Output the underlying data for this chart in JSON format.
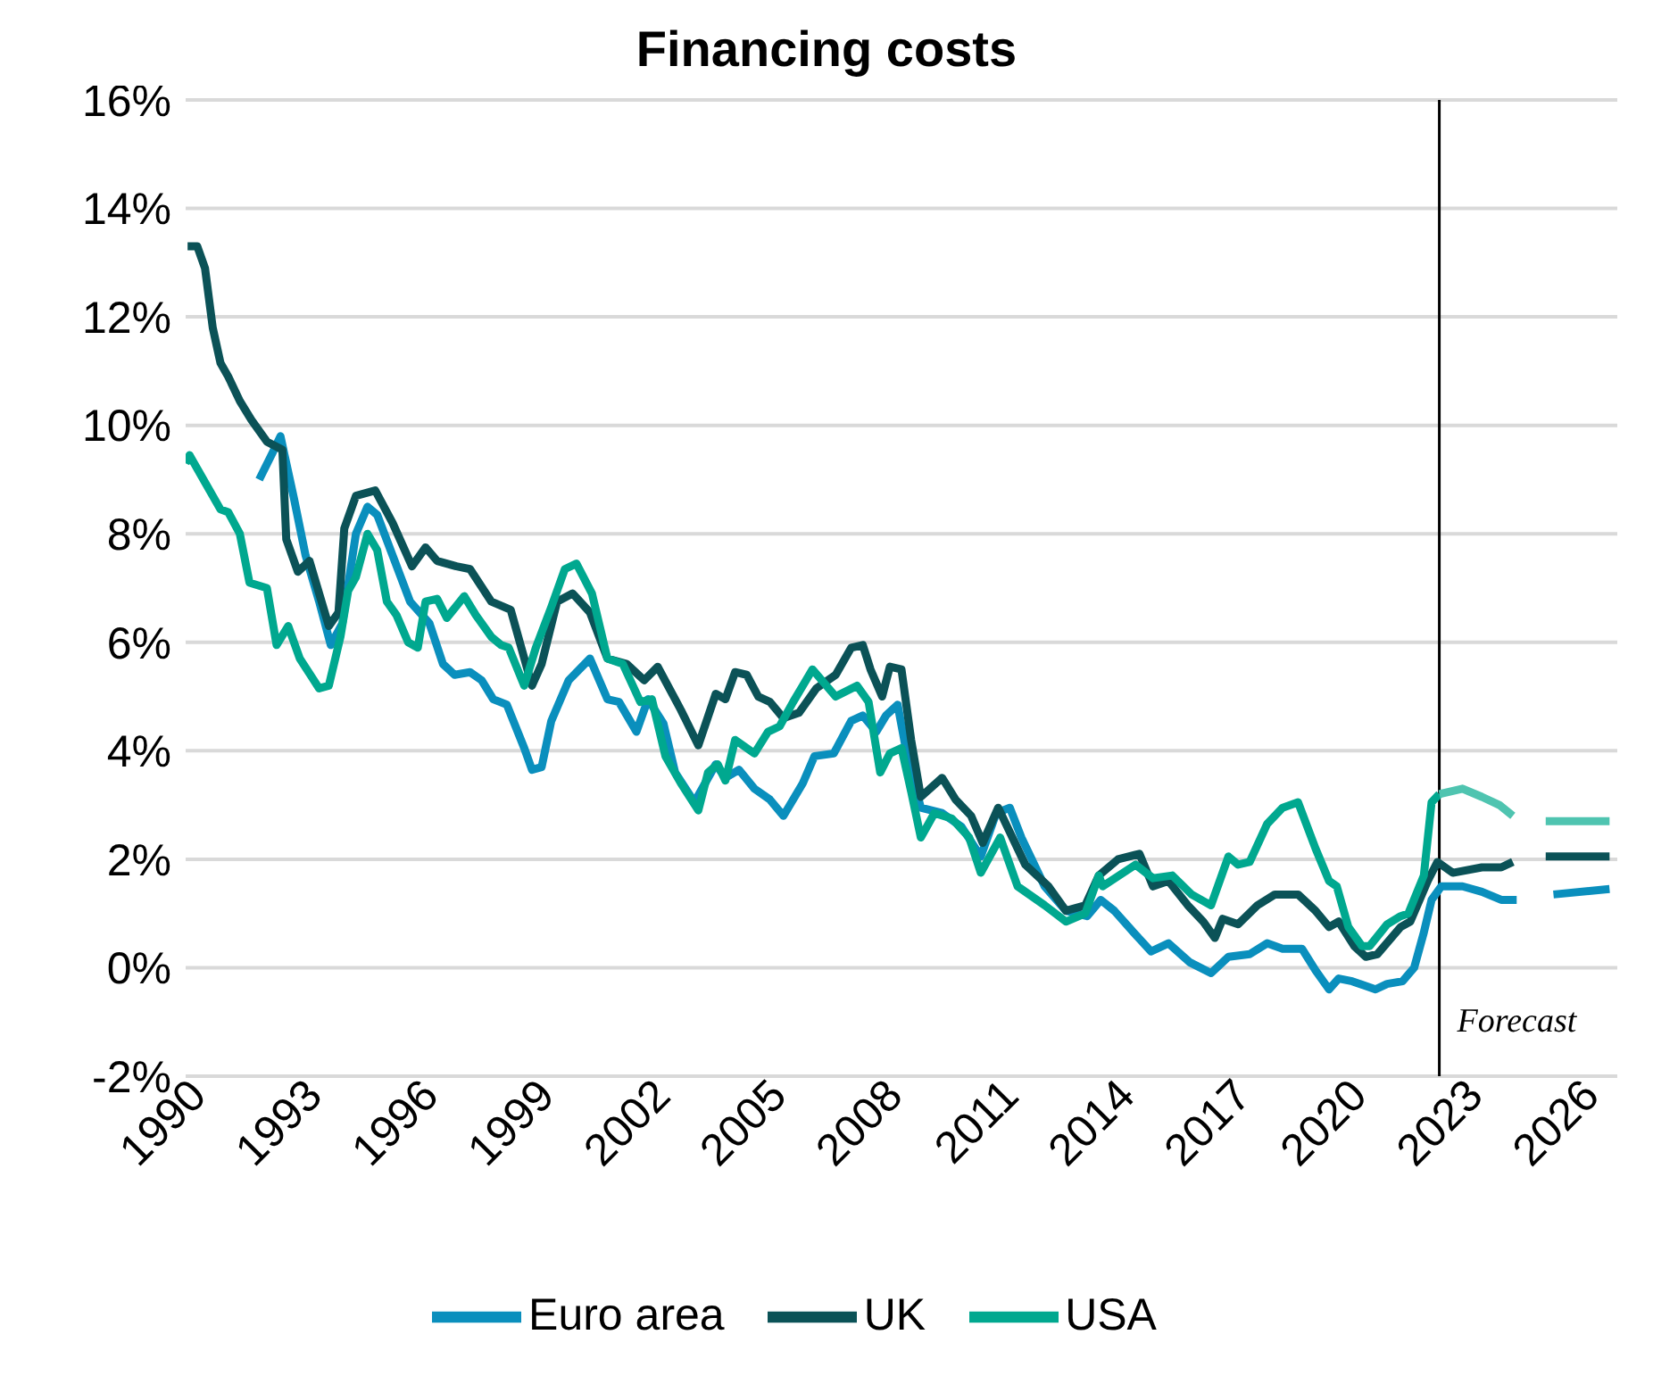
{
  "chart_data": {
    "type": "line",
    "title": "Financing costs",
    "xlim": [
      1990,
      2027
    ],
    "xticks": [
      1990,
      1993,
      1996,
      1999,
      2002,
      2005,
      2008,
      2011,
      2014,
      2017,
      2020,
      2023,
      2026
    ],
    "ylim": [
      -2,
      16
    ],
    "yticks": [
      {
        "value": -2,
        "label": "-2%"
      },
      {
        "value": 0,
        "label": "0%"
      },
      {
        "value": 2,
        "label": "2%"
      },
      {
        "value": 4,
        "label": "4%"
      },
      {
        "value": 6,
        "label": "6%"
      },
      {
        "value": 8,
        "label": "8%"
      },
      {
        "value": 10,
        "label": "10%"
      },
      {
        "value": 12,
        "label": "12%"
      },
      {
        "value": 14,
        "label": "14%"
      },
      {
        "value": 16,
        "label": "16%"
      }
    ],
    "grid": "y",
    "legend": "bottom",
    "ref_lines": [
      {
        "axis": "x",
        "value": 2022.4,
        "label": "Forecast",
        "color": "#000000"
      }
    ],
    "series": [
      {
        "name": "Euro area",
        "color": "#0a8fbd",
        "x": [
          1991.9,
          1992.25,
          1992.45,
          1992.8,
          1993.1,
          1993.45,
          1993.75,
          1994.05,
          1994.4,
          1994.7,
          1994.95,
          1995.35,
          1995.8,
          1996.3,
          1996.65,
          1996.95,
          1997.35,
          1997.65,
          1997.95,
          1998.3,
          1998.75,
          1998.95,
          1999.2,
          1999.45,
          1999.9,
          2000.45,
          2000.9,
          2001.2,
          2001.65,
          2001.95,
          2002.35,
          2002.65,
          2003.15,
          2003.7,
          2003.95,
          2004.3,
          2004.7,
          2005.1,
          2005.45,
          2005.95,
          2006.25,
          2006.75,
          2007.2,
          2007.5,
          2007.85,
          2008.1,
          2008.4,
          2008.65,
          2009.0,
          2009.55,
          2010.05,
          2010.55,
          2010.95,
          2011.3,
          2011.6,
          2012.2,
          2012.75,
          2013.3,
          2013.65,
          2014.0,
          2014.5,
          2014.95,
          2015.4,
          2015.95,
          2016.5,
          2016.95,
          2017.5,
          2017.95,
          2018.35,
          2018.85,
          2019.2,
          2019.55,
          2019.8,
          2020.15,
          2020.75,
          2021.05,
          2021.45,
          2021.75,
          2022.0,
          2022.2,
          2022.45,
          2023.0,
          2023.5,
          2024.0,
          2024.4,
          2024.8,
          2025.35,
          2026.8
        ],
        "values": [
          9.0,
          9.5,
          9.8,
          8.65,
          7.6,
          6.75,
          5.95,
          6.35,
          8.0,
          8.5,
          8.35,
          7.6,
          6.75,
          6.35,
          5.6,
          5.4,
          5.45,
          5.3,
          4.95,
          4.85,
          4.05,
          3.65,
          3.7,
          4.55,
          5.3,
          5.7,
          4.95,
          4.9,
          4.35,
          4.95,
          4.5,
          3.6,
          3.05,
          3.75,
          3.5,
          3.65,
          3.3,
          3.1,
          2.8,
          3.4,
          3.9,
          3.95,
          4.55,
          4.65,
          4.35,
          4.65,
          4.85,
          3.9,
          2.95,
          2.85,
          2.6,
          2.05,
          2.85,
          2.95,
          2.4,
          1.5,
          1.05,
          0.95,
          1.25,
          1.05,
          0.65,
          0.3,
          0.45,
          0.1,
          -0.1,
          0.2,
          0.25,
          0.45,
          0.35,
          0.35,
          -0.05,
          -0.4,
          -0.2,
          -0.25,
          -0.4,
          -0.3,
          -0.25,
          0.0,
          0.65,
          1.25,
          1.5,
          1.5,
          1.4,
          1.25,
          1.25,
          null,
          1.35,
          1.45
        ]
      },
      {
        "name": "UK",
        "color": "#0b5257",
        "x": [
          1990.05,
          1990.3,
          1990.5,
          1990.7,
          1990.9,
          1991.1,
          1991.4,
          1991.7,
          1992.1,
          1992.5,
          1992.6,
          1992.9,
          1993.2,
          1993.7,
          1993.95,
          1994.1,
          1994.4,
          1994.9,
          1995.35,
          1995.6,
          1995.85,
          1996.2,
          1996.5,
          1997.0,
          1997.35,
          1997.9,
          1998.4,
          1998.95,
          1999.2,
          1999.6,
          2000.0,
          2000.45,
          2000.9,
          2001.4,
          2001.85,
          2002.2,
          2002.8,
          2003.25,
          2003.7,
          2003.95,
          2004.2,
          2004.5,
          2004.8,
          2005.1,
          2005.45,
          2005.85,
          2006.3,
          2006.8,
          2007.2,
          2007.5,
          2007.7,
          2008.0,
          2008.2,
          2008.5,
          2008.75,
          2009.0,
          2009.55,
          2009.9,
          2010.3,
          2010.6,
          2011.0,
          2011.7,
          2012.3,
          2012.75,
          2013.25,
          2013.6,
          2014.1,
          2014.65,
          2015.0,
          2015.4,
          2015.9,
          2016.3,
          2016.6,
          2016.8,
          2017.2,
          2017.7,
          2018.15,
          2018.75,
          2019.2,
          2019.55,
          2019.8,
          2020.2,
          2020.5,
          2020.8,
          2021.4,
          2021.65,
          2022.1,
          2022.35,
          2022.75,
          2023.5,
          2024.0,
          2024.3,
          2024.7,
          2025.15,
          2026.8
        ],
        "values": [
          13.3,
          13.3,
          12.9,
          11.8,
          11.15,
          10.9,
          10.45,
          10.1,
          9.7,
          9.55,
          7.9,
          7.3,
          7.5,
          6.3,
          6.55,
          8.1,
          8.7,
          8.8,
          8.2,
          7.8,
          7.4,
          7.75,
          7.5,
          7.4,
          7.35,
          6.75,
          6.6,
          5.2,
          5.6,
          6.75,
          6.9,
          6.55,
          5.7,
          5.6,
          5.3,
          5.55,
          4.75,
          4.1,
          5.05,
          4.95,
          5.45,
          5.4,
          5.0,
          4.9,
          4.6,
          4.7,
          5.15,
          5.4,
          5.9,
          5.95,
          5.5,
          5.0,
          5.55,
          5.5,
          4.2,
          3.15,
          3.5,
          3.1,
          2.8,
          2.3,
          2.95,
          1.9,
          1.5,
          1.05,
          1.15,
          1.7,
          2.0,
          2.1,
          1.5,
          1.6,
          1.15,
          0.85,
          0.55,
          0.9,
          0.8,
          1.15,
          1.35,
          1.35,
          1.05,
          0.75,
          0.85,
          0.4,
          0.2,
          0.25,
          0.75,
          0.85,
          1.6,
          1.95,
          1.75,
          1.85,
          1.85,
          1.95,
          null,
          2.05,
          2.05
        ]
      },
      {
        "name": "USA",
        "color": "#00a88f",
        "x": [
          1990.0,
          1990.1,
          1990.5,
          1990.9,
          1991.1,
          1991.4,
          1991.65,
          1992.1,
          1992.35,
          1992.65,
          1992.95,
          1993.45,
          1993.7,
          1994.0,
          1994.2,
          1994.4,
          1994.7,
          1994.95,
          1995.2,
          1995.45,
          1995.75,
          1996.0,
          1996.2,
          1996.5,
          1996.75,
          1997.2,
          1997.5,
          1997.9,
          1998.15,
          1998.35,
          1998.75,
          1999.05,
          1999.45,
          1999.8,
          2000.1,
          2000.5,
          2000.9,
          2001.3,
          2001.75,
          2002.05,
          2002.4,
          2002.8,
          2003.25,
          2003.5,
          2003.75,
          2003.95,
          2004.2,
          2004.7,
          2005.05,
          2005.35,
          2005.7,
          2006.2,
          2006.5,
          2006.8,
          2007.35,
          2007.65,
          2007.95,
          2008.2,
          2008.5,
          2008.75,
          2009.0,
          2009.35,
          2009.8,
          2010.25,
          2010.55,
          2011.05,
          2011.5,
          2012.2,
          2012.75,
          2013.25,
          2013.6,
          2013.7,
          2014.55,
          2015.0,
          2015.5,
          2016.0,
          2016.5,
          2016.95,
          2017.2,
          2017.5,
          2017.95,
          2018.35,
          2018.75,
          2019.2,
          2019.55,
          2019.75,
          2020.05,
          2020.4,
          2020.6,
          2021.05,
          2021.4,
          2021.6,
          2022.0,
          2022.2,
          2022.4
        ],
        "values": [
          9.3,
          9.45,
          8.95,
          8.45,
          8.4,
          8.0,
          7.1,
          7.0,
          5.95,
          6.3,
          5.7,
          5.15,
          5.2,
          6.1,
          6.95,
          7.2,
          8.0,
          7.7,
          6.75,
          6.5,
          6.0,
          5.9,
          6.75,
          6.8,
          6.45,
          6.85,
          6.5,
          6.1,
          5.95,
          5.9,
          5.2,
          5.9,
          6.65,
          7.35,
          7.45,
          6.9,
          5.7,
          5.6,
          4.9,
          4.95,
          3.9,
          3.4,
          2.9,
          3.6,
          3.75,
          3.45,
          4.2,
          3.95,
          4.35,
          4.45,
          4.9,
          5.5,
          5.25,
          5.0,
          5.2,
          4.9,
          3.6,
          3.95,
          4.05,
          3.25,
          2.4,
          2.85,
          2.75,
          2.4,
          1.75,
          2.4,
          1.5,
          1.15,
          0.85,
          1.0,
          1.7,
          1.5,
          1.9,
          1.65,
          1.7,
          1.35,
          1.15,
          2.05,
          1.9,
          1.95,
          2.65,
          2.95,
          3.05,
          2.2,
          1.6,
          1.5,
          0.75,
          0.4,
          0.4,
          0.8,
          0.95,
          1.0,
          1.7,
          3.05,
          3.2
        ]
      },
      {
        "color": "#4fc4b0",
        "x": [
          2022.4,
          2023.0,
          2023.5,
          2023.95,
          2024.3,
          2024.7,
          2025.15,
          2026.8
        ],
        "values": [
          3.2,
          3.3,
          3.15,
          3.0,
          2.8,
          null,
          2.7,
          2.7
        ]
      }
    ]
  }
}
